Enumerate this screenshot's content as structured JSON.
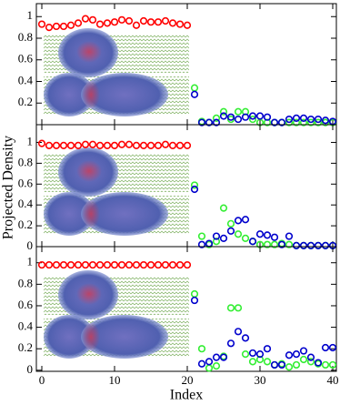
{
  "chart_data": [
    {
      "type": "scatter",
      "xlim": [
        -0.75,
        40.5
      ],
      "ylim": [
        0,
        1.12
      ],
      "xticks": [
        0,
        10,
        20,
        30,
        40
      ],
      "yticks": [
        0.2,
        0.4,
        0.6,
        0.8,
        1
      ],
      "series": [
        {
          "color": "#ff0000",
          "x": [
            0,
            1,
            2,
            3,
            4,
            5,
            6,
            7,
            8,
            9,
            10,
            11,
            12,
            13,
            14,
            15,
            16,
            17,
            18,
            19,
            20
          ],
          "values": [
            0.93,
            0.9,
            0.91,
            0.91,
            0.92,
            0.94,
            0.98,
            0.97,
            0.93,
            0.94,
            0.95,
            0.97,
            0.96,
            0.92,
            0.96,
            0.95,
            0.95,
            0.96,
            0.94,
            0.93,
            0.92
          ]
        },
        {
          "color": "#33ee33",
          "x": [
            21,
            22,
            23,
            24,
            25,
            26,
            27,
            28,
            29,
            30,
            31,
            32,
            33,
            34,
            35,
            36,
            37,
            38,
            39,
            40
          ],
          "values": [
            0.34,
            0.03,
            0.02,
            0.06,
            0.12,
            0.05,
            0.12,
            0.12,
            0.05,
            0.02,
            0.02,
            0.02,
            0.02,
            0.02,
            0.02,
            0.02,
            0.02,
            0.02,
            0.02,
            0.02
          ]
        },
        {
          "color": "#0000cc",
          "x": [
            21,
            22,
            23,
            24,
            25,
            26,
            27,
            28,
            29,
            30,
            31,
            32,
            33,
            34,
            35,
            36,
            37,
            38,
            39,
            40
          ],
          "values": [
            0.28,
            0.02,
            0.02,
            0.02,
            0.08,
            0.07,
            0.05,
            0.07,
            0.08,
            0.08,
            0.07,
            0.02,
            0.02,
            0.05,
            0.06,
            0.06,
            0.05,
            0.05,
            0.04,
            0.03
          ]
        }
      ]
    },
    {
      "type": "scatter",
      "xlim": [
        -0.75,
        40.5
      ],
      "ylim": [
        0,
        1.17
      ],
      "xticks": [
        0,
        10,
        20,
        30,
        40
      ],
      "yticks": [
        0,
        0.2,
        0.4,
        0.6,
        0.8,
        1
      ],
      "ylabel": "Projected Density",
      "series": [
        {
          "color": "#ff0000",
          "x": [
            0,
            1,
            2,
            3,
            4,
            5,
            6,
            7,
            8,
            9,
            10,
            11,
            12,
            13,
            14,
            15,
            16,
            17,
            18,
            19,
            20
          ],
          "values": [
            0.99,
            0.97,
            0.97,
            0.97,
            0.97,
            0.97,
            0.98,
            0.98,
            0.97,
            0.97,
            0.97,
            0.98,
            0.98,
            0.97,
            0.97,
            0.97,
            0.97,
            0.98,
            0.97,
            0.97,
            0.97
          ]
        },
        {
          "color": "#33ee33",
          "x": [
            21,
            22,
            23,
            24,
            25,
            26,
            27,
            28,
            29,
            30,
            31,
            32,
            33,
            34,
            35,
            36,
            37,
            38,
            39,
            40
          ],
          "values": [
            0.59,
            0.1,
            0.02,
            0.05,
            0.37,
            0.22,
            0.12,
            0.08,
            0.05,
            0.02,
            0.02,
            0.02,
            0.03,
            0.02,
            0.01,
            0.01,
            0.01,
            0.01,
            0.01,
            0.01
          ]
        },
        {
          "color": "#0000cc",
          "x": [
            21,
            22,
            23,
            24,
            25,
            26,
            27,
            28,
            29,
            30,
            31,
            32,
            33,
            34,
            35,
            36,
            37,
            38,
            39,
            40
          ],
          "values": [
            0.55,
            0.02,
            0.03,
            0.1,
            0.08,
            0.15,
            0.25,
            0.26,
            0.05,
            0.12,
            0.11,
            0.09,
            0.02,
            0.1,
            0.01,
            0.01,
            0.01,
            0.01,
            0.01,
            0.01
          ]
        }
      ]
    },
    {
      "type": "scatter",
      "xlim": [
        -0.75,
        40.5
      ],
      "ylim": [
        -0.01,
        1.15
      ],
      "xticks": [
        0,
        10,
        20,
        30,
        40
      ],
      "yticks": [
        0,
        0.2,
        0.4,
        0.6,
        0.8,
        1
      ],
      "xlabel": "Index",
      "series": [
        {
          "color": "#ff0000",
          "x": [
            0,
            1,
            2,
            3,
            4,
            5,
            6,
            7,
            8,
            9,
            10,
            11,
            12,
            13,
            14,
            15,
            16,
            17,
            18,
            19,
            20
          ],
          "values": [
            0.98,
            0.98,
            0.98,
            0.98,
            0.98,
            0.98,
            0.98,
            0.98,
            0.98,
            0.98,
            0.98,
            0.98,
            0.98,
            0.98,
            0.98,
            0.98,
            0.98,
            0.98,
            0.98,
            0.98,
            0.98
          ]
        },
        {
          "color": "#33ee33",
          "x": [
            21,
            22,
            23,
            24,
            25,
            26,
            27,
            28,
            29,
            30,
            31,
            32,
            33,
            34,
            35,
            36,
            37,
            38,
            39,
            40
          ],
          "values": [
            0.71,
            0.2,
            0.02,
            0.04,
            0.13,
            0.58,
            0.58,
            0.15,
            0.08,
            0.1,
            0.08,
            0.05,
            0.06,
            0.03,
            0.05,
            0.1,
            0.08,
            0.06,
            0.05,
            0.05
          ]
        },
        {
          "color": "#0000cc",
          "x": [
            21,
            22,
            23,
            24,
            25,
            26,
            27,
            28,
            29,
            30,
            31,
            32,
            33,
            34,
            35,
            36,
            37,
            38,
            39,
            40
          ],
          "values": [
            0.65,
            0.06,
            0.08,
            0.12,
            0.12,
            0.25,
            0.36,
            0.3,
            0.16,
            0.15,
            0.2,
            0.05,
            0.05,
            0.14,
            0.15,
            0.18,
            0.12,
            0.07,
            0.21,
            0.21
          ]
        }
      ]
    }
  ]
}
